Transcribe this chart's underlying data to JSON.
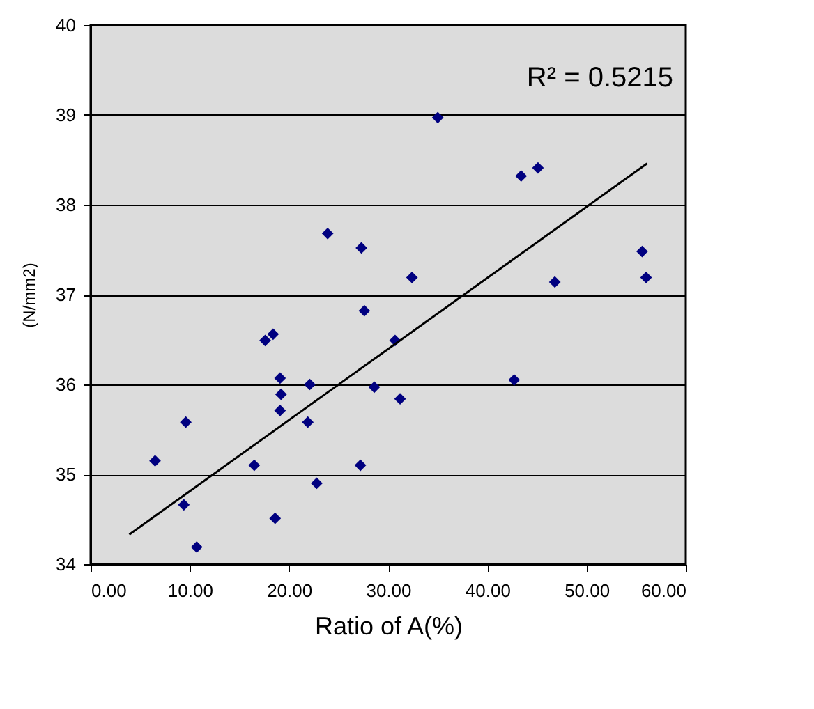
{
  "chart_data": {
    "type": "scatter",
    "xlabel": "Ratio of A(%)",
    "ylabel": "(N/mm2)",
    "xlim": [
      0,
      60
    ],
    "ylim": [
      34,
      40
    ],
    "xticks": [
      {
        "value": 0,
        "label": "0.00"
      },
      {
        "value": 10,
        "label": "10.00"
      },
      {
        "value": 20,
        "label": "20.00"
      },
      {
        "value": 30,
        "label": "30.00"
      },
      {
        "value": 40,
        "label": "40.00"
      },
      {
        "value": 50,
        "label": "50.00"
      },
      {
        "value": 60,
        "label": "60.00"
      }
    ],
    "yticks": [
      34,
      35,
      36,
      37,
      38,
      39,
      40
    ],
    "grid": "y",
    "marker": "diamond",
    "annotations": [
      "R² = 0.5215"
    ],
    "series": [
      {
        "color": "#000080",
        "x": [
          35.0,
          43.4,
          45.1,
          23.9,
          27.3,
          32.4,
          55.6,
          56.0,
          46.8,
          27.6,
          30.7,
          17.6,
          18.4,
          19.1,
          22.1,
          28.6,
          42.7,
          19.2,
          31.2,
          19.1,
          9.6,
          21.9,
          6.5,
          16.5,
          27.2,
          22.8,
          9.4,
          18.6,
          10.7
        ],
        "values": [
          38.97,
          38.32,
          38.41,
          37.68,
          37.52,
          37.19,
          37.48,
          37.19,
          37.14,
          36.82,
          36.49,
          36.49,
          36.56,
          36.07,
          36.0,
          35.97,
          36.05,
          35.89,
          35.84,
          35.71,
          35.58,
          35.58,
          35.15,
          35.1,
          35.1,
          34.9,
          34.66,
          34.51,
          34.19
        ]
      },
      {
        "type": "line",
        "marker": "none",
        "color": "#000000",
        "x": [
          3.9,
          56.1
        ],
        "values": [
          34.33,
          38.46
        ]
      }
    ]
  }
}
